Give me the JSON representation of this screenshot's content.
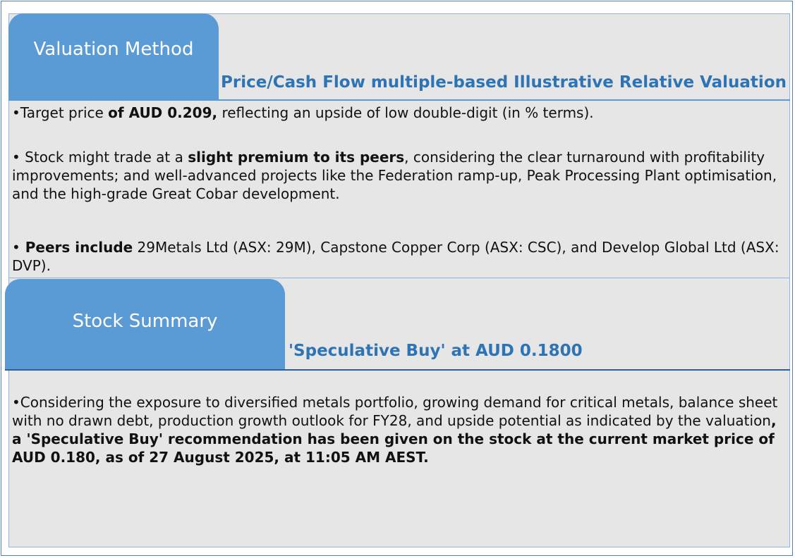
{
  "valuation": {
    "tab_label": "Valuation Method",
    "heading": "Price/Cash Flow multiple-based Illustrative Relative Valuation",
    "point1": {
      "bullet": "•",
      "pre": "Target price ",
      "bold": "of AUD 0.209,",
      "post": " reflecting an upside of low double-digit (in % terms)."
    },
    "point2": {
      "bullet": "•",
      "pre": " Stock might trade at a ",
      "bold": "slight premium to its peers",
      "post": ", considering the clear turnaround with profitability improvements; and well-advanced projects like the Federation ramp-up, Peak Processing Plant optimisation, and the high-grade Great Cobar development."
    },
    "point3": {
      "bullet": "•",
      "bold": " Peers include",
      "post": " 29Metals Ltd (ASX: 29M), Capstone Copper Corp (ASX: CSC), and Develop Global Ltd (ASX: DVP)."
    }
  },
  "summary": {
    "tab_label": "Stock Summary",
    "heading": "'Speculative Buy' at AUD 0.1800",
    "point1": {
      "bullet": "•",
      "pre": "Considering the exposure to diversified metals portfolio, growing demand for critical metals, balance sheet with no drawn debt, production growth outlook for FY28, and upside potential as indicated by the valuation",
      "bold": ", a  'Speculative Buy' recommendation has been given on the stock at the current market price of AUD 0.180, as of 27 August 2025, at 11:05 AM AEST."
    }
  }
}
